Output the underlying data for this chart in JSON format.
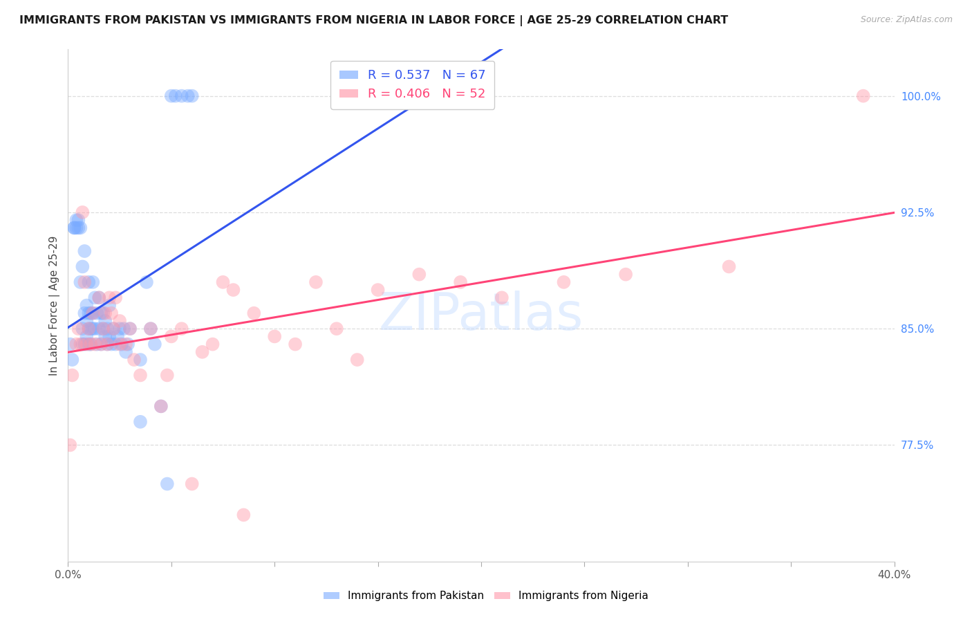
{
  "title": "IMMIGRANTS FROM PAKISTAN VS IMMIGRANTS FROM NIGERIA IN LABOR FORCE | AGE 25-29 CORRELATION CHART",
  "source": "Source: ZipAtlas.com",
  "ylabel": "In Labor Force | Age 25-29",
  "right_yticks": [
    77.5,
    85.0,
    92.5,
    100.0
  ],
  "xmin": 0.0,
  "xmax": 40.0,
  "ymin": 70.0,
  "ymax": 103.0,
  "pakistan_R": 0.537,
  "pakistan_N": 67,
  "nigeria_R": 0.406,
  "nigeria_N": 52,
  "pakistan_color": "#7AABFF",
  "nigeria_color": "#FF99AA",
  "pakistan_line_color": "#3355EE",
  "nigeria_line_color": "#FF4477",
  "watermark_color": "#C8DEFF",
  "title_fontsize": 11.5,
  "axis_tick_color": "#4488FF",
  "grid_color": "#DDDDDD",
  "pakistan_x": [
    0.1,
    0.2,
    0.3,
    0.3,
    0.4,
    0.4,
    0.5,
    0.5,
    0.6,
    0.6,
    0.7,
    0.7,
    0.7,
    0.8,
    0.8,
    0.8,
    0.9,
    0.9,
    0.9,
    1.0,
    1.0,
    1.0,
    1.0,
    1.1,
    1.1,
    1.1,
    1.2,
    1.2,
    1.2,
    1.3,
    1.3,
    1.4,
    1.4,
    1.5,
    1.5,
    1.6,
    1.6,
    1.7,
    1.7,
    1.8,
    1.8,
    1.9,
    1.9,
    2.0,
    2.0,
    2.1,
    2.2,
    2.3,
    2.4,
    2.5,
    2.6,
    2.7,
    2.8,
    2.9,
    3.0,
    3.5,
    3.5,
    3.8,
    4.0,
    4.2,
    4.5,
    4.8,
    5.0,
    5.2,
    5.5,
    5.8,
    6.0
  ],
  "pakistan_y": [
    84.0,
    83.0,
    91.5,
    91.5,
    91.5,
    92.0,
    91.5,
    92.0,
    88.0,
    91.5,
    84.0,
    85.0,
    89.0,
    84.0,
    86.0,
    90.0,
    84.5,
    85.5,
    86.5,
    84.0,
    85.0,
    86.0,
    88.0,
    84.0,
    85.0,
    86.0,
    85.0,
    86.0,
    88.0,
    85.0,
    87.0,
    84.0,
    86.0,
    85.0,
    87.0,
    84.0,
    86.0,
    85.0,
    86.0,
    84.5,
    85.5,
    84.0,
    85.0,
    84.5,
    86.5,
    84.0,
    85.0,
    84.0,
    84.5,
    85.0,
    84.0,
    85.0,
    83.5,
    84.0,
    85.0,
    83.0,
    79.0,
    88.0,
    85.0,
    84.0,
    80.0,
    75.0,
    100.0,
    100.0,
    100.0,
    100.0,
    100.0
  ],
  "nigeria_x": [
    0.1,
    0.2,
    0.4,
    0.5,
    0.6,
    0.7,
    0.8,
    0.9,
    1.0,
    1.1,
    1.2,
    1.3,
    1.5,
    1.6,
    1.7,
    1.8,
    1.9,
    2.0,
    2.1,
    2.2,
    2.3,
    2.5,
    2.5,
    2.8,
    3.0,
    3.2,
    3.5,
    4.0,
    4.5,
    4.8,
    5.0,
    5.5,
    6.0,
    6.5,
    7.0,
    7.5,
    8.0,
    8.5,
    9.0,
    10.0,
    11.0,
    12.0,
    13.0,
    14.0,
    15.0,
    17.0,
    19.0,
    21.0,
    24.0,
    27.0,
    32.0,
    38.5
  ],
  "nigeria_y": [
    77.5,
    82.0,
    84.0,
    85.0,
    84.0,
    92.5,
    88.0,
    84.0,
    85.0,
    84.0,
    86.0,
    84.0,
    87.0,
    84.0,
    85.0,
    86.0,
    84.0,
    87.0,
    86.0,
    85.0,
    87.0,
    84.0,
    85.5,
    84.0,
    85.0,
    83.0,
    82.0,
    85.0,
    80.0,
    82.0,
    84.5,
    85.0,
    75.0,
    83.5,
    84.0,
    88.0,
    87.5,
    73.0,
    86.0,
    84.5,
    84.0,
    88.0,
    85.0,
    83.0,
    87.5,
    88.5,
    88.0,
    87.0,
    88.0,
    88.5,
    89.0,
    100.0
  ]
}
